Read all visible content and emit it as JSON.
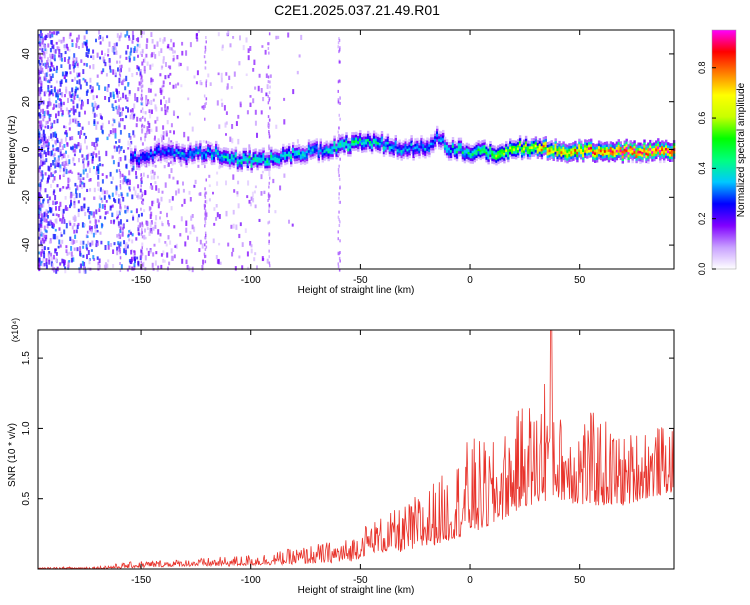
{
  "title": "C2E1.2025.037.21.49.R01",
  "colors": {
    "axis": "#000000",
    "snr_line": "#e8342c",
    "background": "#ffffff"
  },
  "chart_data": [
    {
      "type": "heatmap",
      "title": "",
      "xlabel": "Height of straight line (km)",
      "ylabel": "Frequency (Hz)",
      "xlim": [
        -197,
        93
      ],
      "ylim": [
        -50,
        50
      ],
      "x_ticks": [
        -150,
        -100,
        -50,
        0,
        50
      ],
      "y_ticks": [
        -40,
        -20,
        0,
        20,
        40
      ],
      "colorbar": {
        "label": "Normalized spectral amplitude",
        "range": [
          0.0,
          0.95
        ],
        "ticks": [
          0.0,
          0.2,
          0.4,
          0.6,
          0.8
        ],
        "colormap": [
          "#ffffff",
          "#c8a0ff",
          "#8000ff",
          "#0000ff",
          "#00c8ff",
          "#00ff80",
          "#00ff00",
          "#c8ff00",
          "#ffff00",
          "#ff8000",
          "#ff0000",
          "#ff00ff"
        ]
      },
      "ridge": {
        "x": [
          -150,
          -140,
          -130,
          -120,
          -110,
          -100,
          -90,
          -80,
          -70,
          -60,
          -50,
          -40,
          -30,
          -20,
          -15,
          -10,
          0,
          10,
          20,
          30,
          40,
          50,
          60,
          70,
          80,
          90
        ],
        "freq": [
          -3,
          0,
          -2,
          0,
          -3,
          -4,
          -3,
          -1,
          0,
          2,
          4,
          3,
          1,
          2,
          6,
          1,
          0,
          -1,
          1,
          2,
          0,
          0,
          0,
          0,
          0,
          0
        ],
        "amplitude": [
          0.3,
          0.3,
          0.35,
          0.35,
          0.4,
          0.45,
          0.4,
          0.4,
          0.35,
          0.45,
          0.45,
          0.4,
          0.35,
          0.35,
          0.3,
          0.4,
          0.45,
          0.55,
          0.6,
          0.7,
          0.75,
          0.8,
          0.85,
          0.9,
          0.9,
          0.9
        ]
      }
    },
    {
      "type": "line",
      "title": "",
      "xlabel": "Height of straight line (km)",
      "ylabel": "SNR (10 * v/v)",
      "y_multiplier": "(x10⁴)",
      "xlim": [
        -197,
        93
      ],
      "ylim": [
        0,
        1.7
      ],
      "x_ticks": [
        -150,
        -100,
        -50,
        0,
        50
      ],
      "y_ticks": [
        0.5,
        1.0,
        1.5
      ],
      "envelope": {
        "x": [
          -197,
          -170,
          -150,
          -130,
          -110,
          -90,
          -70,
          -55,
          -50,
          -45,
          -40,
          -30,
          -20,
          -10,
          0,
          10,
          20,
          25,
          30,
          37,
          40,
          50,
          60,
          70,
          80,
          93
        ],
        "base": [
          0.0,
          0.0,
          0.01,
          0.02,
          0.02,
          0.03,
          0.04,
          0.05,
          0.08,
          0.12,
          0.12,
          0.12,
          0.15,
          0.2,
          0.25,
          0.3,
          0.4,
          0.45,
          0.45,
          0.5,
          0.5,
          0.45,
          0.45,
          0.45,
          0.5,
          0.55
        ],
        "peak": [
          0.01,
          0.02,
          0.06,
          0.07,
          0.09,
          0.12,
          0.18,
          0.22,
          0.3,
          0.35,
          0.38,
          0.45,
          0.6,
          0.7,
          0.95,
          0.9,
          1.05,
          1.25,
          1.15,
          1.72,
          1.1,
          1.15,
          1.1,
          0.95,
          1.05,
          1.0
        ]
      }
    }
  ]
}
